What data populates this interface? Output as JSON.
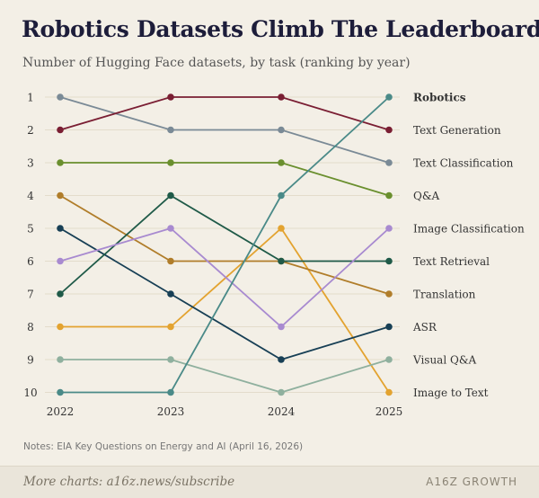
{
  "header": {
    "title": "Robotics Datasets Climb The Leaderboard",
    "subtitle": "Number of Hugging Face datasets, by task (ranking by year)"
  },
  "notes": "Notes: EIA Key Questions on Energy and AI (April 16, 2026)",
  "footer": {
    "link": "More charts: a16z.news/subscribe",
    "brand": "A16Z GROWTH"
  },
  "chart_data": {
    "type": "line",
    "x": [
      "2022",
      "2023",
      "2024",
      "2025"
    ],
    "y_ticks": [
      "1",
      "2",
      "3",
      "4",
      "5",
      "6",
      "7",
      "8",
      "9",
      "10"
    ],
    "y_reversed": true,
    "ylim": [
      1,
      10
    ],
    "grid": "horizontal",
    "series": [
      {
        "name": "Robotics",
        "color": "#4a8a88",
        "values": [
          10,
          10,
          4,
          1
        ],
        "bold": true
      },
      {
        "name": "Text Generation",
        "color": "#7a1e33",
        "values": [
          2,
          1,
          1,
          2
        ]
      },
      {
        "name": "Text Classification",
        "color": "#7a8a96",
        "values": [
          1,
          2,
          2,
          3
        ]
      },
      {
        "name": "Q&A",
        "color": "#6a8f2e",
        "values": [
          3,
          3,
          3,
          4
        ]
      },
      {
        "name": "Image Classification",
        "color": "#a88ad0",
        "values": [
          6,
          5,
          8,
          5
        ]
      },
      {
        "name": "Text Retrieval",
        "color": "#1f5a48",
        "values": [
          7,
          4,
          6,
          6
        ]
      },
      {
        "name": "Translation",
        "color": "#b07d2a",
        "values": [
          4,
          6,
          6,
          7
        ]
      },
      {
        "name": "ASR",
        "color": "#173f55",
        "values": [
          5,
          7,
          9,
          8
        ]
      },
      {
        "name": "Visual Q&A",
        "color": "#8fb09e",
        "values": [
          9,
          9,
          10,
          9
        ]
      },
      {
        "name": "Image to Text",
        "color": "#e3a330",
        "values": [
          8,
          8,
          5,
          10
        ]
      }
    ]
  }
}
